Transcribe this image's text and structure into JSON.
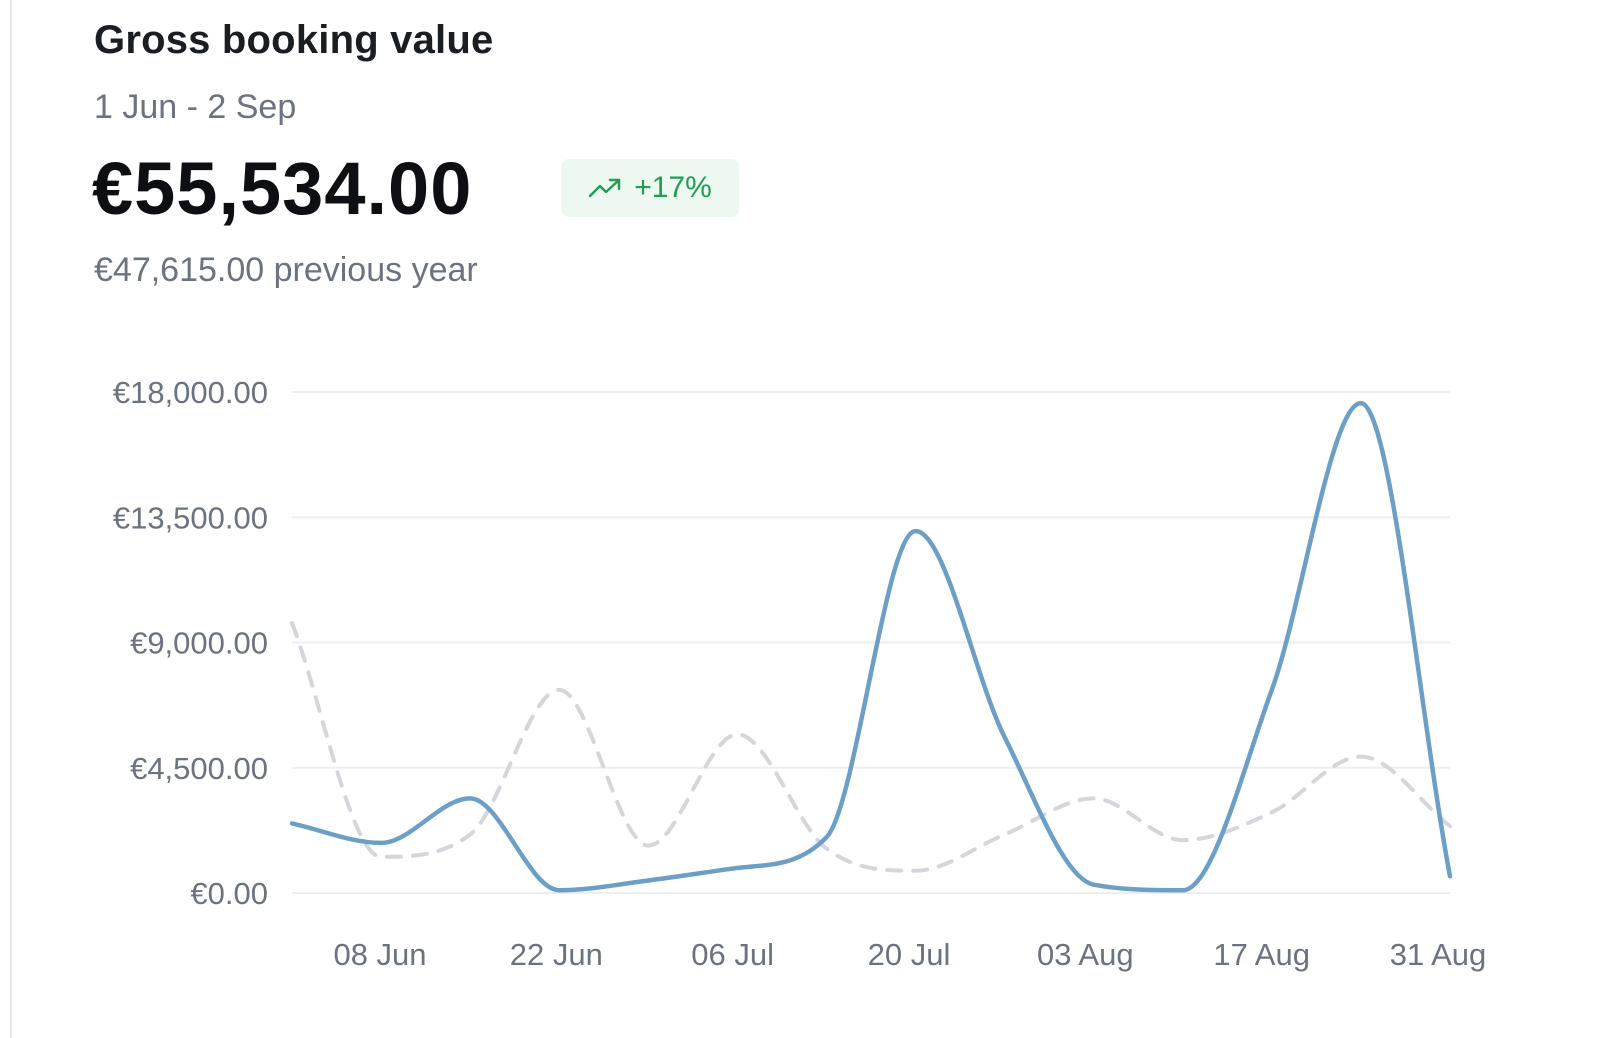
{
  "header": {
    "title": "Gross booking value",
    "date_range": "1 Jun - 2 Sep",
    "total_value": "€55,534.00",
    "change_badge": "+17%",
    "previous_year_text": "€47,615.00 previous year"
  },
  "colors": {
    "current": "#6c9fc6",
    "previous": "#d4d6db",
    "grid": "#eceef1",
    "badge_text": "#1f9d55",
    "badge_bg": "#edf8f0"
  },
  "icons": {
    "trend": "trending-up-icon"
  },
  "chart_data": {
    "type": "line",
    "title": "Gross booking value",
    "xlabel": "",
    "ylabel": "",
    "ylim": [
      0,
      18000
    ],
    "y_ticks": [
      0,
      4500,
      9000,
      13500,
      18000
    ],
    "y_tick_labels": [
      "€0.00",
      "€4,500.00",
      "€9,000.00",
      "€13,500.00",
      "€18,000.00"
    ],
    "x_tick_labels": [
      "08 Jun",
      "22 Jun",
      "06 Jul",
      "20 Jul",
      "03 Aug",
      "17 Aug",
      "31 Aug"
    ],
    "grid": true,
    "legend": "none",
    "x": [
      "01 Jun",
      "08 Jun",
      "15 Jun",
      "22 Jun",
      "29 Jun",
      "06 Jul",
      "13 Jul",
      "20 Jul",
      "27 Jul",
      "03 Aug",
      "10 Aug",
      "17 Aug",
      "24 Aug",
      "31 Aug"
    ],
    "series": [
      {
        "values": [
          2500,
          1800,
          3400,
          100,
          450,
          900,
          2000,
          13000,
          5600,
          300,
          100,
          7300,
          17600,
          600
        ],
        "style": "solid"
      },
      {
        "values": [
          9700,
          1300,
          2100,
          7300,
          1700,
          5700,
          1600,
          800,
          2100,
          3400,
          1900,
          2900,
          4900,
          2400
        ],
        "style": "dashed"
      }
    ]
  }
}
